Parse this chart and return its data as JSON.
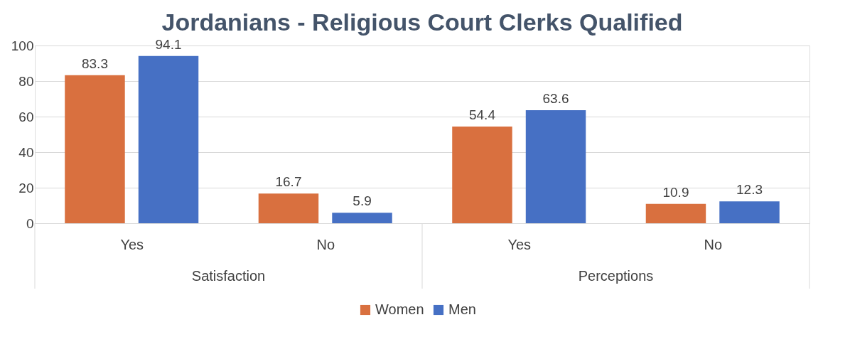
{
  "chart_data": {
    "type": "bar",
    "title": "Jordanians - Religious Court Clerks Qualified",
    "categories": [
      "Yes",
      "No",
      "Yes",
      "No"
    ],
    "series": [
      {
        "name": "Women",
        "color": "#d9703f",
        "values": [
          83.3,
          16.7,
          54.4,
          10.9
        ]
      },
      {
        "name": "Men",
        "color": "#4670c4",
        "values": [
          94.1,
          5.9,
          63.6,
          12.3
        ]
      }
    ],
    "annotations": [
      "Satisfaction",
      "Perceptions"
    ],
    "ylim": [
      0,
      100
    ],
    "yticks": [
      0,
      20,
      40,
      60,
      80,
      100
    ],
    "grid": "y",
    "legend": "bottom",
    "data_labels": true
  }
}
